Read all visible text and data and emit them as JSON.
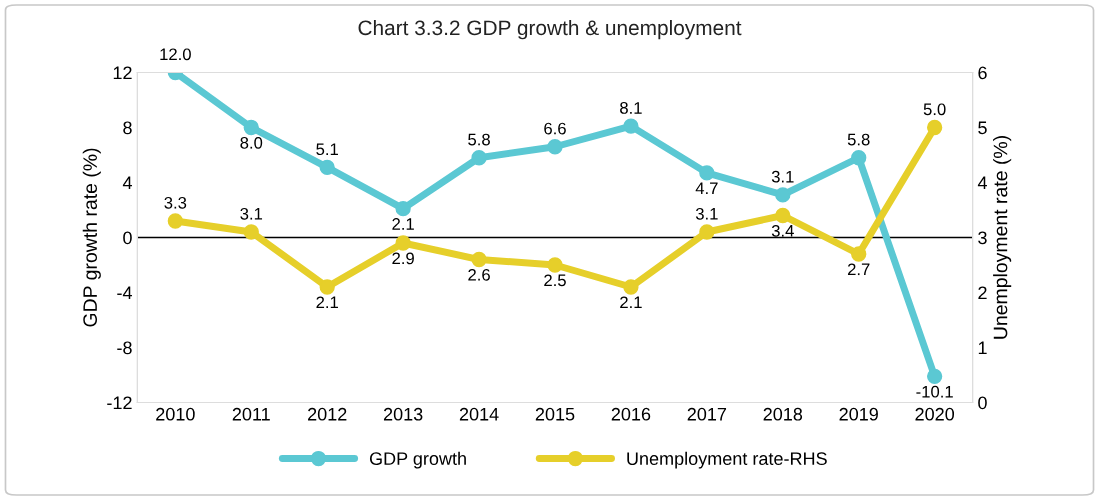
{
  "chart_data": {
    "type": "line",
    "title": "Chart 3.3.2 GDP growth & unemployment",
    "ylabel": "GDP growth rate (%)",
    "y2label": "Unemployment rate (%)",
    "categories": [
      "2010",
      "2011",
      "2012",
      "2013",
      "2014",
      "2015",
      "2016",
      "2017",
      "2018",
      "2019",
      "2020"
    ],
    "series": [
      {
        "name": "GDP growth",
        "color": "#5bc8d3",
        "values": [
          12.0,
          8.0,
          5.1,
          2.1,
          5.8,
          6.6,
          8.1,
          4.7,
          3.1,
          5.8,
          -10.1
        ],
        "value_labels": [
          "12.0",
          "8.0",
          "5.1",
          "2.1",
          "5.8",
          "6.6",
          "8.1",
          "4.7",
          "3.1",
          "5.8",
          "-10.1"
        ]
      },
      {
        "name": "Unemployment rate-RHS",
        "color": "#e6cf2a",
        "axis": "y2",
        "values": [
          3.3,
          3.1,
          2.1,
          2.9,
          2.6,
          2.5,
          2.1,
          3.1,
          3.4,
          2.7,
          5.0
        ],
        "value_labels": [
          "3.3",
          "3.1",
          "2.1",
          "2.9",
          "2.6",
          "2.5",
          "2.1",
          "3.1",
          "3.4",
          "2.7",
          "5.0"
        ]
      }
    ],
    "ylim": [
      -12,
      12
    ],
    "yticks": [
      -12,
      -8,
      -4,
      0,
      4,
      8,
      12
    ],
    "y2lim": [
      0,
      6
    ],
    "y2ticks": [
      0,
      1,
      2,
      3,
      4,
      5,
      6
    ],
    "ref_lines": [
      {
        "axis": "y",
        "value": 0,
        "color": "#000000"
      }
    ],
    "data_labels": true,
    "grid": false,
    "legend": "bottom",
    "marker": "circle",
    "line_style": "solid"
  }
}
